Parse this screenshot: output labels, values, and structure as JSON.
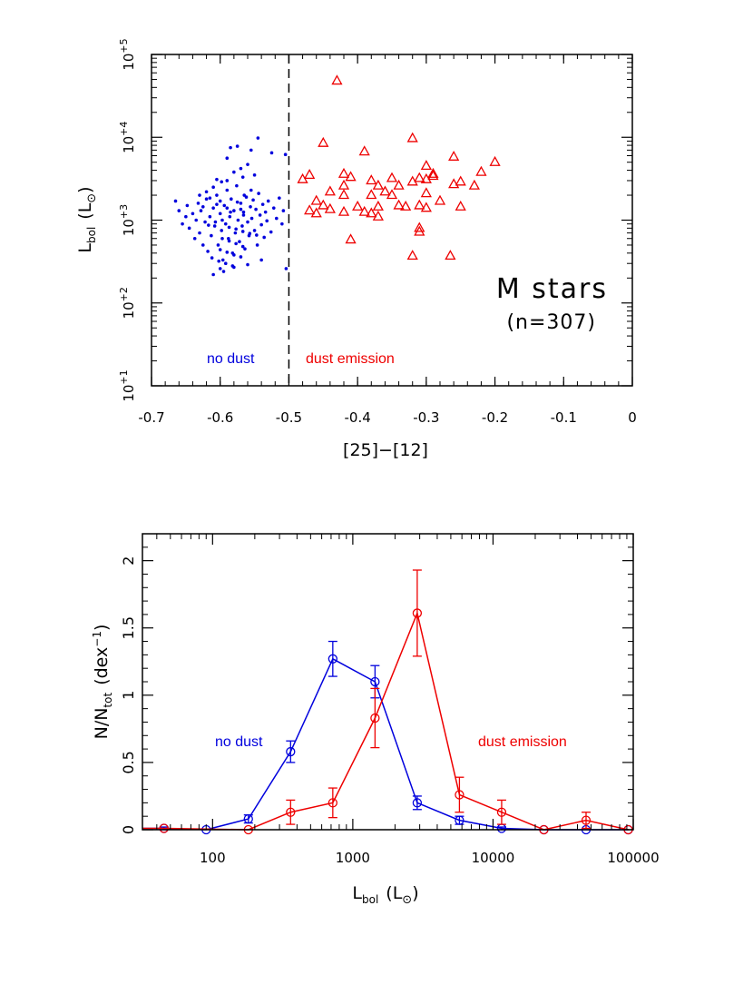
{
  "chart_data": [
    {
      "type": "scatter",
      "xlabel": "[25]−[12]",
      "ylabel_main": "L",
      "ylabel_sub": "bol",
      "ylabel_unit_open": "(L",
      "ylabel_unit_close": ")",
      "xlim": [
        -0.7,
        0.0
      ],
      "ylim": [
        10,
        100000
      ],
      "log_y": true,
      "x_ticks": [
        -0.7,
        -0.6,
        -0.5,
        -0.4,
        -0.3,
        -0.2,
        -0.1,
        0
      ],
      "x_tick_labels": [
        "-0.7",
        "-0.6",
        "-0.5",
        "-0.4",
        "-0.3",
        "-0.2",
        "-0.1",
        "0"
      ],
      "y_ticks": [
        10,
        100,
        1000,
        10000,
        100000
      ],
      "y_tick_labels": [
        "10+1",
        "10+2",
        "10+3",
        "10+4",
        "10+5"
      ],
      "divider_x": -0.5,
      "annotations": {
        "title_line1": "M stars",
        "title_line2": "(n=307)",
        "no_dust": "no dust",
        "dust_emission": "dust emission"
      },
      "colors": {
        "no_dust": "#0000dd",
        "dust": "#ee0000"
      },
      "series": [
        {
          "marker": "dot",
          "points": [
            [
              -0.665,
              1700
            ],
            [
              -0.66,
              1300
            ],
            [
              -0.655,
              900
            ],
            [
              -0.65,
              1100
            ],
            [
              -0.648,
              1500
            ],
            [
              -0.645,
              800
            ],
            [
              -0.64,
              1200
            ],
            [
              -0.637,
              600
            ],
            [
              -0.635,
              1000
            ],
            [
              -0.632,
              1600
            ],
            [
              -0.63,
              700
            ],
            [
              -0.628,
              1300
            ],
            [
              -0.625,
              500
            ],
            [
              -0.622,
              950
            ],
            [
              -0.62,
              1800
            ],
            [
              -0.618,
              420
            ],
            [
              -0.615,
              1100
            ],
            [
              -0.613,
              650
            ],
            [
              -0.61,
              1400
            ],
            [
              -0.608,
              850
            ],
            [
              -0.605,
              2000
            ],
            [
              -0.603,
              500
            ],
            [
              -0.6,
              1200
            ],
            [
              -0.598,
              750
            ],
            [
              -0.596,
              330
            ],
            [
              -0.594,
              1500
            ],
            [
              -0.592,
              900
            ],
            [
              -0.59,
              2300
            ],
            [
              -0.588,
              600
            ],
            [
              -0.586,
              1100
            ],
            [
              -0.584,
              1800
            ],
            [
              -0.582,
              400
            ],
            [
              -0.58,
              1300
            ],
            [
              -0.578,
              700
            ],
            [
              -0.576,
              2600
            ],
            [
              -0.574,
              1000
            ],
            [
              -0.572,
              550
            ],
            [
              -0.57,
              1600
            ],
            [
              -0.568,
              850
            ],
            [
              -0.566,
              1250
            ],
            [
              -0.564,
              450
            ],
            [
              -0.562,
              1900
            ],
            [
              -0.56,
              950
            ],
            [
              -0.558,
              650
            ],
            [
              -0.556,
              1450
            ],
            [
              -0.554,
              1050
            ],
            [
              -0.552,
              1750
            ],
            [
              -0.55,
              750
            ],
            [
              -0.548,
              1350
            ],
            [
              -0.546,
              500
            ],
            [
              -0.544,
              2100
            ],
            [
              -0.542,
              1150
            ],
            [
              -0.54,
              880
            ],
            [
              -0.538,
              1550
            ],
            [
              -0.536,
              620
            ],
            [
              -0.534,
              1250
            ],
            [
              -0.532,
              980
            ],
            [
              -0.53,
              1700
            ],
            [
              -0.526,
              720
            ],
            [
              -0.522,
              1400
            ],
            [
              -0.518,
              1050
            ],
            [
              -0.514,
              1850
            ],
            [
              -0.51,
              900
            ],
            [
              -0.508,
              1300
            ],
            [
              -0.504,
              260
            ],
            [
              -0.575,
              7800
            ],
            [
              -0.585,
              7500
            ],
            [
              -0.555,
              7000
            ],
            [
              -0.56,
              4700
            ],
            [
              -0.57,
              4200
            ],
            [
              -0.58,
              3800
            ],
            [
              -0.567,
              3300
            ],
            [
              -0.59,
              3000
            ],
            [
              -0.55,
              3500
            ],
            [
              -0.545,
              9800
            ],
            [
              -0.605,
              3100
            ],
            [
              -0.598,
              2900
            ],
            [
              -0.61,
              2500
            ],
            [
              -0.62,
              2200
            ],
            [
              -0.6,
              260
            ],
            [
              -0.61,
              220
            ],
            [
              -0.595,
              240
            ],
            [
              -0.58,
              270
            ],
            [
              -0.56,
              290
            ],
            [
              -0.54,
              330
            ],
            [
              -0.525,
              6500
            ],
            [
              -0.505,
              6200
            ],
            [
              -0.59,
              5600
            ],
            [
              -0.63,
              2000
            ],
            [
              -0.6,
              1700
            ],
            [
              -0.575,
              1650
            ],
            [
              -0.565,
              2000
            ],
            [
              -0.555,
              2300
            ],
            [
              -0.59,
              1400
            ],
            [
              -0.57,
              1350
            ],
            [
              -0.615,
              1850
            ],
            [
              -0.625,
              1450
            ],
            [
              -0.605,
              1550
            ],
            [
              -0.585,
              1250
            ],
            [
              -0.566,
              1150
            ],
            [
              -0.597,
              1000
            ],
            [
              -0.607,
              950
            ],
            [
              -0.617,
              870
            ],
            [
              -0.587,
              820
            ],
            [
              -0.577,
              780
            ],
            [
              -0.567,
              730
            ],
            [
              -0.557,
              690
            ],
            [
              -0.547,
              660
            ],
            [
              -0.597,
              600
            ],
            [
              -0.587,
              560
            ],
            [
              -0.577,
              520
            ],
            [
              -0.567,
              480
            ],
            [
              -0.6,
              440
            ],
            [
              -0.59,
              410
            ],
            [
              -0.58,
              380
            ],
            [
              -0.57,
              360
            ],
            [
              -0.612,
              350
            ],
            [
              -0.602,
              320
            ],
            [
              -0.592,
              300
            ],
            [
              -0.582,
              280
            ]
          ]
        },
        {
          "marker": "triangle",
          "points": [
            [
              -0.43,
              48000
            ],
            [
              -0.45,
              8500
            ],
            [
              -0.32,
              9700
            ],
            [
              -0.39,
              6700
            ],
            [
              -0.26,
              5800
            ],
            [
              -0.2,
              5000
            ],
            [
              -0.3,
              4500
            ],
            [
              -0.22,
              3800
            ],
            [
              -0.47,
              3500
            ],
            [
              -0.42,
              3600
            ],
            [
              -0.48,
              3100
            ],
            [
              -0.41,
              3300
            ],
            [
              -0.38,
              3000
            ],
            [
              -0.35,
              3200
            ],
            [
              -0.31,
              3200
            ],
            [
              -0.29,
              3400
            ],
            [
              -0.25,
              2900
            ],
            [
              -0.37,
              2600
            ],
            [
              -0.34,
              2600
            ],
            [
              -0.3,
              3100
            ],
            [
              -0.32,
              2900
            ],
            [
              -0.29,
              3600
            ],
            [
              -0.23,
              2600
            ],
            [
              -0.42,
              2600
            ],
            [
              -0.36,
              2200
            ],
            [
              -0.44,
              2200
            ],
            [
              -0.26,
              2700
            ],
            [
              -0.3,
              2100
            ],
            [
              -0.46,
              1700
            ],
            [
              -0.42,
              2000
            ],
            [
              -0.38,
              2000
            ],
            [
              -0.35,
              2000
            ],
            [
              -0.45,
              1500
            ],
            [
              -0.47,
              1300
            ],
            [
              -0.44,
              1350
            ],
            [
              -0.42,
              1250
            ],
            [
              -0.4,
              1450
            ],
            [
              -0.37,
              1450
            ],
            [
              -0.33,
              1450
            ],
            [
              -0.3,
              1400
            ],
            [
              -0.31,
              1500
            ],
            [
              -0.25,
              1450
            ],
            [
              -0.46,
              1200
            ],
            [
              -0.38,
              1200
            ],
            [
              -0.37,
              1100
            ],
            [
              -0.31,
              800
            ],
            [
              -0.31,
              720
            ],
            [
              -0.41,
              580
            ],
            [
              -0.32,
              370
            ],
            [
              -0.265,
              370
            ],
            [
              -0.34,
              1500
            ],
            [
              -0.28,
              1700
            ],
            [
              -0.39,
              1250
            ]
          ]
        }
      ]
    },
    {
      "type": "line",
      "xlabel_main": "L",
      "xlabel_sub": "bol",
      "xlabel_unit_open": "(L",
      "xlabel_unit_close": ")",
      "ylabel_main": "N/N",
      "ylabel_sub": "tot",
      "ylabel_unit": "(dex",
      "ylabel_sup": "−1",
      "ylabel_close": ")",
      "log_x": true,
      "xlim": [
        31.6,
        100000
      ],
      "ylim": [
        0,
        2.2
      ],
      "x_ticks": [
        100,
        1000,
        10000,
        100000
      ],
      "x_tick_labels": [
        "100",
        "1000",
        "10000",
        "100000"
      ],
      "y_ticks": [
        0,
        0.5,
        1,
        1.5,
        2
      ],
      "y_tick_labels": [
        "0",
        "0.5",
        "1",
        "1.5",
        "2"
      ],
      "annotations": {
        "no_dust": "no dust",
        "dust_emission": "dust emission"
      },
      "colors": {
        "no_dust": "#0000dd",
        "dust": "#ee0000"
      },
      "series": [
        {
          "key": "no_dust",
          "x": [
            45,
            90,
            180,
            360,
            720,
            1440,
            2880,
            5760,
            11520,
            23040,
            46080,
            92160
          ],
          "y": [
            0.01,
            0.0,
            0.08,
            0.58,
            1.27,
            1.1,
            0.2,
            0.07,
            0.01,
            0.0,
            0.0,
            0.0
          ],
          "err": [
            0.01,
            0.0,
            0.03,
            0.08,
            0.13,
            0.12,
            0.05,
            0.03,
            0.01,
            0.0,
            0.0,
            0.0
          ]
        },
        {
          "key": "dust",
          "x": [
            45,
            180,
            360,
            720,
            1440,
            2880,
            5760,
            11520,
            23040,
            46080,
            92160
          ],
          "y": [
            0.01,
            0.0,
            0.13,
            0.2,
            0.83,
            1.61,
            0.26,
            0.13,
            0.0,
            0.07,
            0.0
          ],
          "err": [
            0.0,
            0.0,
            0.09,
            0.11,
            0.22,
            0.32,
            0.13,
            0.09,
            0.0,
            0.06,
            0.0
          ]
        }
      ]
    }
  ]
}
